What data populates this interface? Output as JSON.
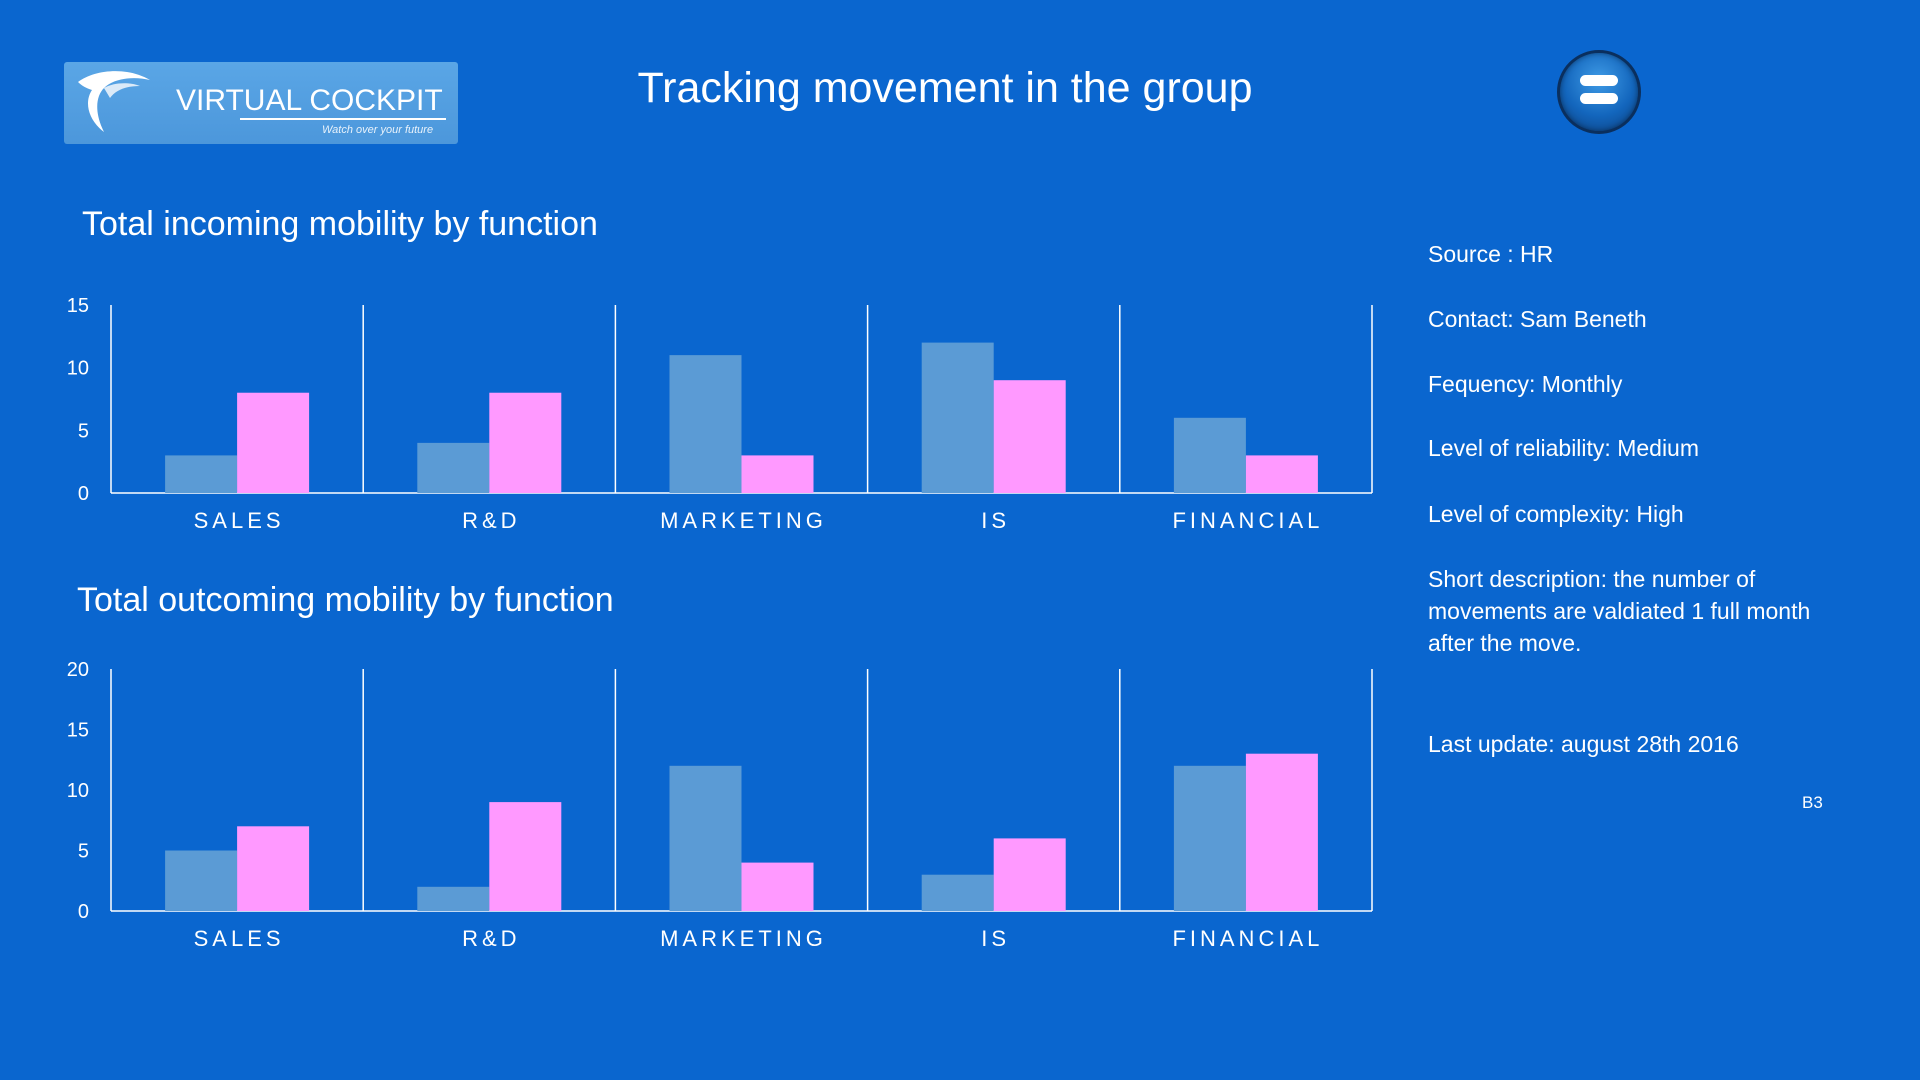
{
  "header": {
    "title": "Tracking movement in the group",
    "logo": {
      "text": "VIRTUAL COCKPIT",
      "tagline": "Watch over your future",
      "icon": "eagle-logo-icon"
    },
    "menu_icon": "menu-icon"
  },
  "info": {
    "source": "Source : HR",
    "contact": "Contact: Sam Beneth",
    "frequency": "Fequency: Monthly",
    "reliability": "Level of reliability: Medium",
    "complexity": "Level of complexity:  High",
    "description": "Short description:  the number  of movements are valdiated 1 full month after the move.",
    "last_update": "Last update:  august 28th  2016",
    "page_code": "B3"
  },
  "colors": {
    "background": "#0a66cf",
    "series_a": "#5b9bd5",
    "series_b": "#ff99ff",
    "axis": "#ffffff"
  },
  "chart_data": [
    {
      "type": "bar",
      "title": "Total incoming mobility by function",
      "categories": [
        "SALES",
        "R&D",
        "MARKETING",
        "IS",
        "FINANCIAL"
      ],
      "series": [
        {
          "values": [
            3,
            4,
            11,
            12,
            6
          ]
        },
        {
          "values": [
            8,
            8,
            3,
            9,
            3
          ]
        }
      ],
      "yticks": [
        0,
        5,
        10,
        15
      ],
      "ylim": [
        0,
        15
      ],
      "grid": false,
      "legend": "none"
    },
    {
      "type": "bar",
      "title": "Total outcoming mobility by function",
      "categories": [
        "SALES",
        "R&D",
        "MARKETING",
        "IS",
        "FINANCIAL"
      ],
      "series": [
        {
          "values": [
            5,
            2,
            12,
            3,
            12
          ]
        },
        {
          "values": [
            7,
            9,
            4,
            6,
            13
          ]
        }
      ],
      "yticks": [
        0,
        5,
        10,
        15,
        20
      ],
      "ylim": [
        0,
        20
      ],
      "grid": false,
      "legend": "none"
    }
  ]
}
